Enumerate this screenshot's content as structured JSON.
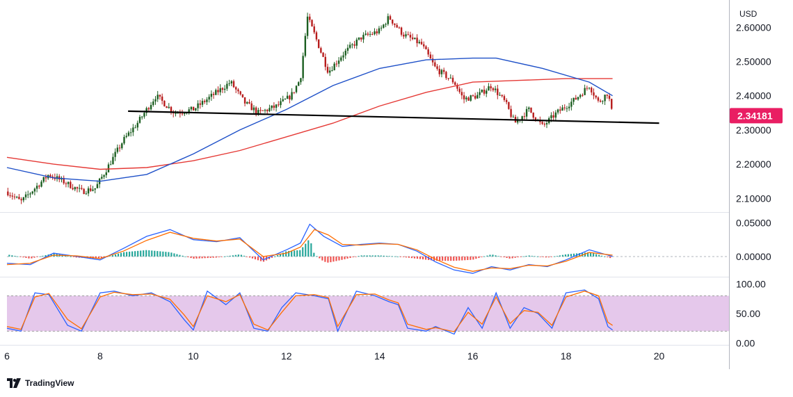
{
  "brand": {
    "name": "TradingView",
    "logo_icon": "tradingview-logo-icon"
  },
  "chart_data": [
    {
      "type": "candlestick",
      "currency": "USD",
      "x_ticks": [
        "6",
        "8",
        "10",
        "12",
        "14",
        "16",
        "18",
        "20"
      ],
      "x_range": [
        6,
        21.5
      ],
      "ylim": [
        2.06,
        2.68
      ],
      "y_ticks": [
        "2.10000",
        "2.20000",
        "2.30000",
        "2.40000",
        "2.50000",
        "2.60000"
      ],
      "current_price": "2.34181",
      "current_price_color": "#e91e63",
      "candle_up_color": "#1b5e20",
      "candle_down_color": "#b71c1c",
      "price_path": [
        [
          6.0,
          2.12
        ],
        [
          6.3,
          2.09
        ],
        [
          6.6,
          2.13
        ],
        [
          6.9,
          2.17
        ],
        [
          7.2,
          2.15
        ],
        [
          7.6,
          2.12
        ],
        [
          7.9,
          2.13
        ],
        [
          8.2,
          2.2
        ],
        [
          8.5,
          2.27
        ],
        [
          8.8,
          2.32
        ],
        [
          9.2,
          2.4
        ],
        [
          9.6,
          2.35
        ],
        [
          10.0,
          2.36
        ],
        [
          10.4,
          2.4
        ],
        [
          10.8,
          2.44
        ],
        [
          11.1,
          2.38
        ],
        [
          11.4,
          2.35
        ],
        [
          11.8,
          2.37
        ],
        [
          12.1,
          2.4
        ],
        [
          12.3,
          2.45
        ],
        [
          12.45,
          2.63
        ],
        [
          12.6,
          2.58
        ],
        [
          12.9,
          2.47
        ],
        [
          13.2,
          2.52
        ],
        [
          13.6,
          2.57
        ],
        [
          14.0,
          2.59
        ],
        [
          14.2,
          2.63
        ],
        [
          14.5,
          2.58
        ],
        [
          14.9,
          2.55
        ],
        [
          15.2,
          2.48
        ],
        [
          15.6,
          2.44
        ],
        [
          15.8,
          2.39
        ],
        [
          16.1,
          2.4
        ],
        [
          16.4,
          2.43
        ],
        [
          16.7,
          2.38
        ],
        [
          16.9,
          2.32
        ],
        [
          17.2,
          2.36
        ],
        [
          17.5,
          2.31
        ],
        [
          17.8,
          2.35
        ],
        [
          18.2,
          2.39
        ],
        [
          18.5,
          2.43
        ],
        [
          18.7,
          2.38
        ],
        [
          18.9,
          2.41
        ],
        [
          19.0,
          2.34
        ]
      ],
      "series": [
        {
          "name": "",
          "color": "#e53935",
          "points": [
            [
              6.0,
              2.22
            ],
            [
              7.0,
              2.2
            ],
            [
              8.0,
              2.185
            ],
            [
              9.0,
              2.19
            ],
            [
              10.0,
              2.21
            ],
            [
              11.0,
              2.24
            ],
            [
              12.0,
              2.28
            ],
            [
              13.0,
              2.32
            ],
            [
              14.0,
              2.37
            ],
            [
              15.0,
              2.41
            ],
            [
              16.0,
              2.44
            ],
            [
              17.0,
              2.445
            ],
            [
              18.0,
              2.45
            ],
            [
              19.0,
              2.45
            ]
          ]
        },
        {
          "name": "",
          "color": "#1e50c8",
          "points": [
            [
              6.0,
              2.19
            ],
            [
              7.0,
              2.16
            ],
            [
              8.0,
              2.15
            ],
            [
              9.0,
              2.17
            ],
            [
              10.0,
              2.23
            ],
            [
              11.0,
              2.3
            ],
            [
              12.0,
              2.36
            ],
            [
              13.0,
              2.43
            ],
            [
              14.0,
              2.48
            ],
            [
              15.0,
              2.505
            ],
            [
              16.0,
              2.51
            ],
            [
              16.5,
              2.51
            ],
            [
              17.5,
              2.48
            ],
            [
              18.5,
              2.44
            ],
            [
              19.0,
              2.4
            ]
          ]
        }
      ],
      "trendline": {
        "color": "#000000",
        "from": [
          8.6,
          2.355
        ],
        "to": [
          20.0,
          2.32
        ]
      }
    },
    {
      "type": "macd",
      "ylim": [
        -0.03,
        0.065
      ],
      "y_ticks": [
        "0.00000",
        "0.05000"
      ],
      "zero_line": 0,
      "series": [
        {
          "name": "",
          "color": "#2962ff",
          "points": [
            [
              6.0,
              -0.01
            ],
            [
              6.5,
              -0.012
            ],
            [
              7.0,
              0.005
            ],
            [
              7.5,
              0.0
            ],
            [
              8.0,
              -0.005
            ],
            [
              8.5,
              0.012
            ],
            [
              9.0,
              0.03
            ],
            [
              9.5,
              0.04
            ],
            [
              10.0,
              0.025
            ],
            [
              10.5,
              0.022
            ],
            [
              11.0,
              0.028
            ],
            [
              11.5,
              -0.005
            ],
            [
              12.0,
              0.01
            ],
            [
              12.3,
              0.02
            ],
            [
              12.5,
              0.048
            ],
            [
              12.8,
              0.03
            ],
            [
              13.2,
              0.015
            ],
            [
              13.6,
              0.018
            ],
            [
              14.0,
              0.02
            ],
            [
              14.4,
              0.018
            ],
            [
              14.8,
              0.008
            ],
            [
              15.2,
              -0.008
            ],
            [
              15.6,
              -0.02
            ],
            [
              16.0,
              -0.025
            ],
            [
              16.4,
              -0.015
            ],
            [
              16.8,
              -0.02
            ],
            [
              17.2,
              -0.012
            ],
            [
              17.6,
              -0.015
            ],
            [
              18.0,
              -0.005
            ],
            [
              18.5,
              0.01
            ],
            [
              19.0,
              0.0
            ]
          ]
        },
        {
          "name": "",
          "color": "#ff6d00",
          "points": [
            [
              6.0,
              -0.012
            ],
            [
              6.5,
              -0.01
            ],
            [
              7.0,
              0.002
            ],
            [
              7.5,
              0.001
            ],
            [
              8.0,
              -0.003
            ],
            [
              8.5,
              0.008
            ],
            [
              9.0,
              0.024
            ],
            [
              9.5,
              0.036
            ],
            [
              10.0,
              0.027
            ],
            [
              10.5,
              0.023
            ],
            [
              11.0,
              0.026
            ],
            [
              11.5,
              0.0
            ],
            [
              12.0,
              0.005
            ],
            [
              12.3,
              0.014
            ],
            [
              12.6,
              0.04
            ],
            [
              12.9,
              0.032
            ],
            [
              13.2,
              0.018
            ],
            [
              13.6,
              0.017
            ],
            [
              14.0,
              0.019
            ],
            [
              14.4,
              0.018
            ],
            [
              14.8,
              0.01
            ],
            [
              15.2,
              -0.004
            ],
            [
              15.6,
              -0.016
            ],
            [
              16.0,
              -0.022
            ],
            [
              16.4,
              -0.017
            ],
            [
              16.8,
              -0.018
            ],
            [
              17.2,
              -0.013
            ],
            [
              17.6,
              -0.014
            ],
            [
              18.0,
              -0.007
            ],
            [
              18.5,
              0.006
            ],
            [
              19.0,
              0.002
            ]
          ]
        }
      ],
      "histogram_up_color": "#26a69a",
      "histogram_down_color": "#ef5350"
    },
    {
      "type": "stochastic",
      "ylim": [
        -2,
        110
      ],
      "y_ticks": [
        "0.00",
        "50.00",
        "100.00"
      ],
      "band": [
        20,
        80
      ],
      "band_color": "#e1bee7",
      "series": [
        {
          "name": "",
          "color": "#2962ff",
          "points": [
            [
              6.0,
              25
            ],
            [
              6.3,
              20
            ],
            [
              6.6,
              85
            ],
            [
              6.9,
              82
            ],
            [
              7.3,
              30
            ],
            [
              7.6,
              20
            ],
            [
              8.0,
              85
            ],
            [
              8.3,
              88
            ],
            [
              8.7,
              80
            ],
            [
              9.1,
              85
            ],
            [
              9.5,
              70
            ],
            [
              9.8,
              40
            ],
            [
              10.0,
              22
            ],
            [
              10.3,
              88
            ],
            [
              10.7,
              65
            ],
            [
              11.0,
              85
            ],
            [
              11.3,
              25
            ],
            [
              11.6,
              20
            ],
            [
              11.9,
              60
            ],
            [
              12.2,
              85
            ],
            [
              12.6,
              80
            ],
            [
              12.9,
              75
            ],
            [
              13.1,
              20
            ],
            [
              13.5,
              88
            ],
            [
              13.9,
              80
            ],
            [
              14.2,
              70
            ],
            [
              14.4,
              65
            ],
            [
              14.6,
              25
            ],
            [
              15.0,
              20
            ],
            [
              15.2,
              28
            ],
            [
              15.6,
              15
            ],
            [
              15.9,
              60
            ],
            [
              16.2,
              25
            ],
            [
              16.5,
              85
            ],
            [
              16.8,
              25
            ],
            [
              17.1,
              60
            ],
            [
              17.4,
              50
            ],
            [
              17.7,
              25
            ],
            [
              18.0,
              85
            ],
            [
              18.4,
              90
            ],
            [
              18.7,
              75
            ],
            [
              18.9,
              28
            ],
            [
              19.0,
              22
            ]
          ]
        },
        {
          "name": "",
          "color": "#ff6d00",
          "points": [
            [
              6.0,
              28
            ],
            [
              6.3,
              23
            ],
            [
              6.6,
              78
            ],
            [
              6.9,
              84
            ],
            [
              7.3,
              40
            ],
            [
              7.6,
              24
            ],
            [
              8.0,
              78
            ],
            [
              8.3,
              86
            ],
            [
              8.7,
              82
            ],
            [
              9.1,
              83
            ],
            [
              9.5,
              74
            ],
            [
              9.8,
              48
            ],
            [
              10.0,
              28
            ],
            [
              10.3,
              80
            ],
            [
              10.7,
              70
            ],
            [
              11.0,
              82
            ],
            [
              11.3,
              32
            ],
            [
              11.6,
              22
            ],
            [
              11.9,
              52
            ],
            [
              12.2,
              80
            ],
            [
              12.6,
              82
            ],
            [
              12.9,
              77
            ],
            [
              13.1,
              28
            ],
            [
              13.5,
              82
            ],
            [
              13.9,
              83
            ],
            [
              14.2,
              73
            ],
            [
              14.4,
              68
            ],
            [
              14.6,
              32
            ],
            [
              15.0,
              23
            ],
            [
              15.2,
              26
            ],
            [
              15.6,
              19
            ],
            [
              15.9,
              52
            ],
            [
              16.2,
              32
            ],
            [
              16.5,
              78
            ],
            [
              16.8,
              33
            ],
            [
              17.1,
              55
            ],
            [
              17.4,
              52
            ],
            [
              17.7,
              30
            ],
            [
              18.0,
              78
            ],
            [
              18.4,
              88
            ],
            [
              18.7,
              80
            ],
            [
              18.9,
              35
            ],
            [
              19.0,
              30
            ]
          ]
        }
      ]
    }
  ]
}
